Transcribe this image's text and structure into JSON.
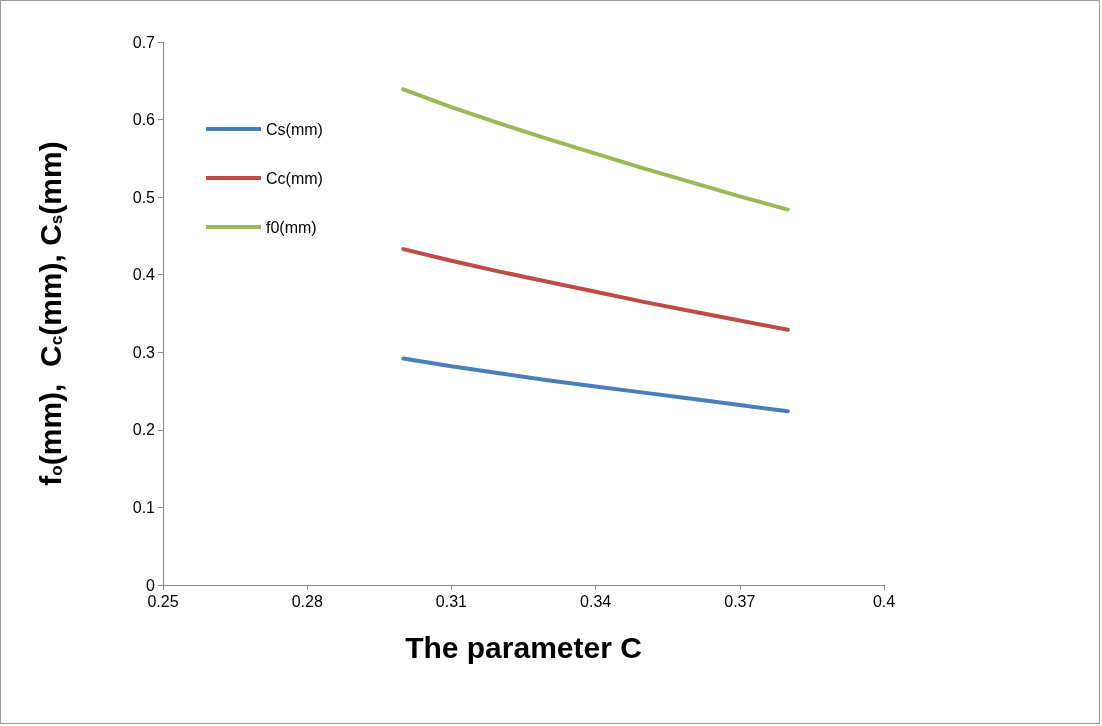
{
  "chart_data": {
    "type": "line",
    "xlabel": "The parameter C",
    "ylabel": "f$_{o}$(mm),  C$_{c}$(mm), C$_{s}$(mm)",
    "x": [
      0.3,
      0.31,
      0.32,
      0.33,
      0.34,
      0.35,
      0.36,
      0.37,
      0.38
    ],
    "series": [
      {
        "name": "Cs(mm)",
        "color": "#4a7ebb",
        "values": [
          0.292,
          0.282,
          0.273,
          0.264,
          0.256,
          0.248,
          0.24,
          0.232,
          0.224
        ]
      },
      {
        "name": "Cc(mm)",
        "color": "#be4b48",
        "values": [
          0.433,
          0.418,
          0.404,
          0.391,
          0.378,
          0.365,
          0.353,
          0.341,
          0.329
        ]
      },
      {
        "name": "f0(mm)",
        "color": "#98b954",
        "values": [
          0.639,
          0.616,
          0.595,
          0.575,
          0.556,
          0.537,
          0.519,
          0.501,
          0.484
        ]
      }
    ],
    "xlim": [
      0.25,
      0.4
    ],
    "xticks": [
      0.25,
      0.28,
      0.31,
      0.34,
      0.37,
      0.4
    ],
    "ylim": [
      0,
      0.7
    ],
    "yticks": [
      0,
      0.1,
      0.2,
      0.3,
      0.4,
      0.5,
      0.6,
      0.7
    ],
    "grid": false,
    "legend": "top left",
    "marker": "none",
    "line_style": "solid"
  }
}
